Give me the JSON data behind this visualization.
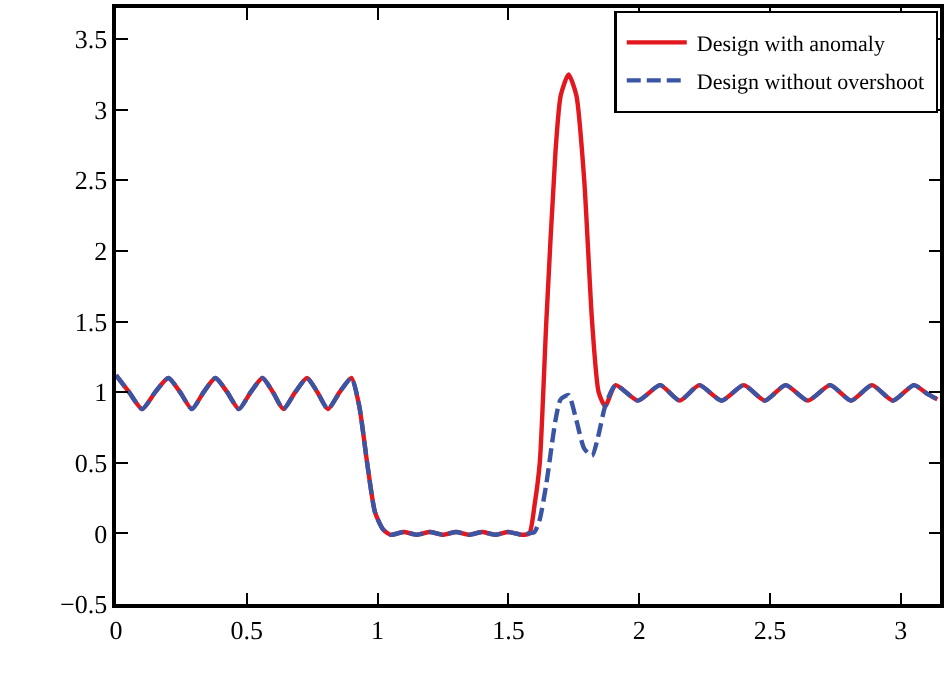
{
  "chart_data": {
    "type": "line",
    "x": [
      0,
      0.05,
      0.1,
      0.15,
      0.2,
      0.245,
      0.29,
      0.335,
      0.38,
      0.425,
      0.47,
      0.515,
      0.56,
      0.6,
      0.64,
      0.685,
      0.73,
      0.77,
      0.81,
      0.855,
      0.9,
      0.93,
      0.96,
      0.99,
      1.02,
      1.05,
      1.1,
      1.15,
      1.2,
      1.25,
      1.3,
      1.35,
      1.4,
      1.45,
      1.5,
      1.55,
      1.58,
      1.6,
      1.62,
      1.645,
      1.68,
      1.7,
      1.73,
      1.76,
      1.79,
      1.82,
      1.845,
      1.87,
      1.91,
      1.995,
      2.08,
      2.155,
      2.23,
      2.315,
      2.4,
      2.48,
      2.56,
      2.645,
      2.73,
      2.81,
      2.89,
      2.97,
      3.05,
      3.1,
      3.14
    ],
    "series": [
      {
        "name": "Design with anomaly",
        "color": "#e3171e",
        "line_style": "solid",
        "values": [
          1.12,
          1.0,
          0.88,
          1.0,
          1.1,
          1.0,
          0.88,
          1.0,
          1.1,
          1.0,
          0.88,
          1.0,
          1.1,
          1.0,
          0.88,
          1.0,
          1.1,
          1.0,
          0.88,
          1.0,
          1.1,
          0.9,
          0.5,
          0.15,
          0.03,
          -0.01,
          0.01,
          -0.01,
          0.01,
          -0.01,
          0.01,
          -0.01,
          0.01,
          -0.01,
          0.01,
          -0.01,
          0.0,
          0.2,
          0.5,
          1.5,
          2.7,
          3.1,
          3.25,
          3.1,
          2.5,
          1.5,
          1.0,
          0.9,
          1.05,
          0.94,
          1.05,
          0.94,
          1.05,
          0.94,
          1.05,
          0.94,
          1.05,
          0.94,
          1.05,
          0.94,
          1.05,
          0.94,
          1.05,
          0.99,
          0.95
        ]
      },
      {
        "name": "Design without overshoot",
        "color": "#3a55a4",
        "line_style": "dashed",
        "values": [
          1.12,
          1.0,
          0.88,
          1.0,
          1.1,
          1.0,
          0.88,
          1.0,
          1.1,
          1.0,
          0.88,
          1.0,
          1.1,
          1.0,
          0.88,
          1.0,
          1.1,
          1.0,
          0.88,
          1.0,
          1.1,
          0.9,
          0.5,
          0.15,
          0.03,
          -0.01,
          0.01,
          -0.01,
          0.01,
          -0.01,
          0.01,
          -0.01,
          0.01,
          -0.01,
          0.01,
          -0.01,
          0.0,
          0.01,
          0.1,
          0.35,
          0.8,
          0.95,
          0.98,
          0.8,
          0.6,
          0.55,
          0.7,
          0.9,
          1.05,
          0.94,
          1.05,
          0.94,
          1.05,
          0.94,
          1.05,
          0.94,
          1.05,
          0.94,
          1.05,
          0.94,
          1.05,
          0.94,
          1.05,
          0.99,
          0.95
        ]
      }
    ],
    "xlim": [
      0,
      3.15
    ],
    "ylim": [
      -0.5,
      3.72
    ],
    "xticks": [
      0,
      0.5,
      1,
      1.5,
      2,
      2.5,
      3
    ],
    "yticks": [
      -0.5,
      0,
      0.5,
      1,
      1.5,
      2,
      2.5,
      3,
      3.5
    ],
    "legend": "top right",
    "marker": "none"
  }
}
